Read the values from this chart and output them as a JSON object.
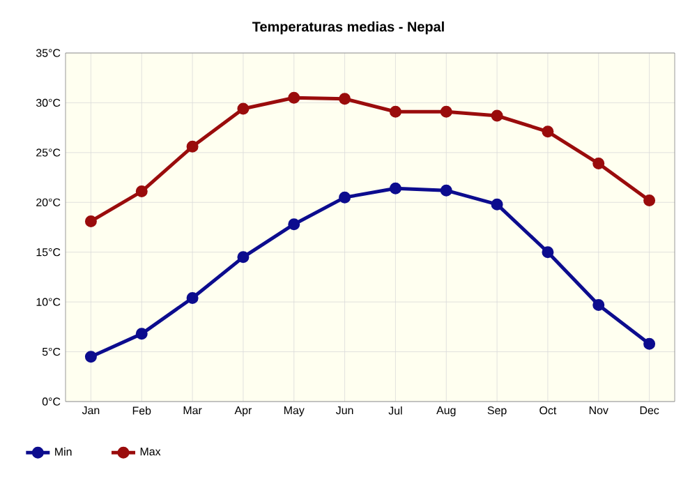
{
  "chart_data": {
    "type": "line",
    "title": "Temperaturas medias - Nepal",
    "categories": [
      "Jan",
      "Feb",
      "Mar",
      "Apr",
      "May",
      "Jun",
      "Jul",
      "Aug",
      "Sep",
      "Oct",
      "Nov",
      "Dec"
    ],
    "series": [
      {
        "name": "Min",
        "color": "#0c0c8e",
        "values": [
          4.5,
          6.8,
          10.4,
          14.5,
          17.8,
          20.5,
          21.4,
          21.2,
          19.8,
          15.0,
          9.7,
          5.8
        ]
      },
      {
        "name": "Max",
        "color": "#9a0c0c",
        "values": [
          18.1,
          21.1,
          25.6,
          29.4,
          30.5,
          30.4,
          29.1,
          29.1,
          28.7,
          27.1,
          23.9,
          20.2
        ]
      }
    ],
    "ylim": [
      0,
      35
    ],
    "yticks": [
      {
        "value": 0,
        "label": "0°C"
      },
      {
        "value": 5,
        "label": "5°C"
      },
      {
        "value": 10,
        "label": "10°C"
      },
      {
        "value": 15,
        "label": "15°C"
      },
      {
        "value": 20,
        "label": "20°C"
      },
      {
        "value": 25,
        "label": "25°C"
      },
      {
        "value": 30,
        "label": "30°C"
      },
      {
        "value": 35,
        "label": "35°C"
      }
    ],
    "grid": true,
    "legend": "bottom left",
    "marker": "circle",
    "line_style": "solid"
  }
}
